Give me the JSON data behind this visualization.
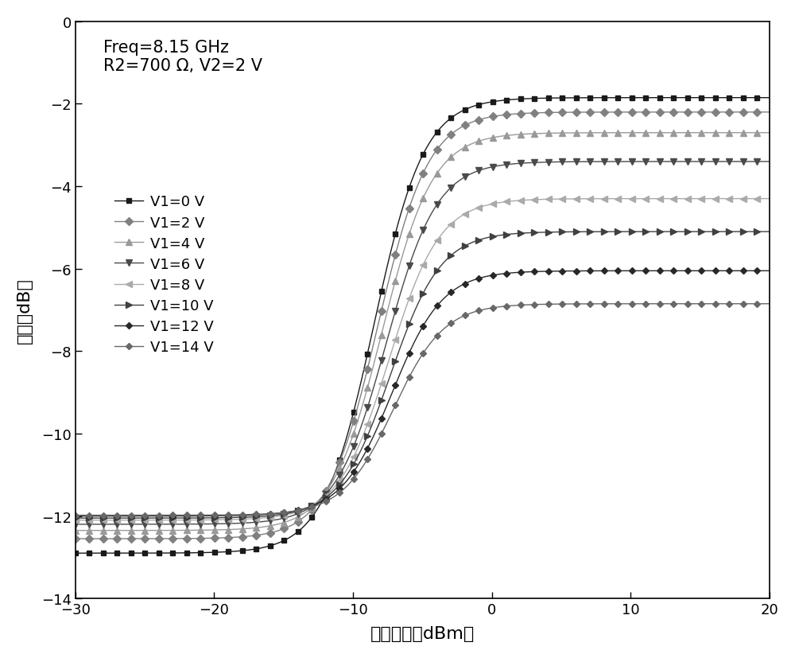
{
  "title_text": "Freq=8.15 GHz\nR2=700 Ω, V2=2 V",
  "xlabel": "输入功率（dBm）",
  "ylabel": "幅度（dB）",
  "xlim": [
    -30,
    20
  ],
  "ylim": [
    -14,
    0
  ],
  "xticks": [
    -30,
    -20,
    -10,
    0,
    10,
    20
  ],
  "yticks": [
    0,
    -2,
    -4,
    -6,
    -8,
    -10,
    -12,
    -14
  ],
  "series": [
    {
      "label": "V1=0 V",
      "color": "#1a1a1a",
      "marker": "s",
      "markersize": 5,
      "floor": -12.9,
      "ceil": -1.85,
      "midpoint": -8.5,
      "steepness": 0.55
    },
    {
      "label": "V1=2 V",
      "color": "#808080",
      "marker": "D",
      "markersize": 5,
      "floor": -12.55,
      "ceil": -2.2,
      "midpoint": -8.2,
      "steepness": 0.55
    },
    {
      "label": "V1=4 V",
      "color": "#9a9a9a",
      "marker": "^",
      "markersize": 6,
      "floor": -12.35,
      "ceil": -2.7,
      "midpoint": -7.9,
      "steepness": 0.55
    },
    {
      "label": "V1=6 V",
      "color": "#4a4a4a",
      "marker": "v",
      "markersize": 6,
      "floor": -12.2,
      "ceil": -3.4,
      "midpoint": -7.6,
      "steepness": 0.55
    },
    {
      "label": "V1=8 V",
      "color": "#aaaaaa",
      "marker": "<",
      "markersize": 6,
      "floor": -12.1,
      "ceil": -4.3,
      "midpoint": -7.4,
      "steepness": 0.55
    },
    {
      "label": "V1=10 V",
      "color": "#404040",
      "marker": ">",
      "markersize": 6,
      "floor": -12.05,
      "ceil": -5.1,
      "midpoint": -7.3,
      "steepness": 0.55
    },
    {
      "label": "V1=12 V",
      "color": "#282828",
      "marker": "D",
      "markersize": 4,
      "floor": -12.0,
      "ceil": -6.05,
      "midpoint": -7.2,
      "steepness": 0.55
    },
    {
      "label": "V1=14 V",
      "color": "#686868",
      "marker": "D",
      "markersize": 4,
      "floor": -11.98,
      "ceil": -6.85,
      "midpoint": -7.1,
      "steepness": 0.55
    }
  ],
  "background_color": "#ffffff",
  "figsize": [
    10.0,
    8.28
  ],
  "dpi": 100
}
